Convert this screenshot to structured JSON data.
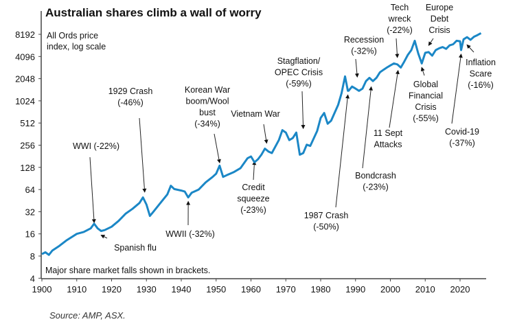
{
  "chart_data": {
    "type": "line",
    "title": "Australian shares climb a wall of worry",
    "subtitle": [
      "All Ords price",
      "index, log scale"
    ],
    "note": "Major share market falls shown in brackets.",
    "source": "Source: AMP, ASX.",
    "xlabel": "",
    "ylabel": "",
    "y_scale": "log2",
    "ylim": [
      4,
      12000
    ],
    "xlim": [
      1900,
      2027
    ],
    "y_ticks": [
      "8192",
      "4096",
      "2048",
      "1024",
      "512",
      "256",
      "128",
      "64",
      "32",
      "16",
      "8",
      "4"
    ],
    "x_ticks": [
      "1900",
      "1910",
      "1920",
      "1930",
      "1940",
      "1950",
      "1960",
      "1970",
      "1980",
      "1990",
      "2000",
      "2010",
      "2020"
    ],
    "line_color": "#1b87c6",
    "series": [
      {
        "name": "All Ords price index",
        "x": [
          1900,
          1901,
          1902,
          1903,
          1905,
          1907,
          1910,
          1912,
          1914,
          1915,
          1916,
          1917,
          1918,
          1920,
          1922,
          1924,
          1926,
          1928,
          1929,
          1930,
          1931,
          1932,
          1934,
          1936,
          1937,
          1938,
          1940,
          1941,
          1942,
          1943,
          1945,
          1947,
          1949,
          1950,
          1951,
          1952,
          1953,
          1955,
          1957,
          1959,
          1960,
          1961,
          1962,
          1963,
          1964,
          1965,
          1966,
          1968,
          1969,
          1970,
          1971,
          1972,
          1973,
          1974,
          1975,
          1976,
          1977,
          1979,
          1980,
          1981,
          1982,
          1983,
          1985,
          1986,
          1987,
          1987.8,
          1988,
          1989,
          1990,
          1991,
          1992,
          1993,
          1994,
          1995,
          1996,
          1997,
          1998,
          1999,
          2000,
          2001,
          2002,
          2003,
          2004,
          2005,
          2006,
          2007,
          2008,
          2009,
          2010,
          2011,
          2012,
          2013,
          2014,
          2015,
          2016,
          2017,
          2018,
          2019,
          2020,
          2020.3,
          2021,
          2022,
          2023,
          2024,
          2025,
          2026
        ],
        "values": [
          8.5,
          9,
          8.3,
          9.5,
          11,
          13,
          16,
          17,
          19,
          22,
          19,
          17.5,
          18,
          20,
          24,
          30,
          35,
          42,
          50,
          40,
          28,
          32,
          42,
          55,
          72,
          65,
          62,
          60,
          50,
          58,
          64,
          80,
          95,
          105,
          135,
          95,
          100,
          110,
          125,
          170,
          180,
          150,
          165,
          190,
          230,
          210,
          200,
          300,
          410,
          380,
          300,
          320,
          380,
          190,
          200,
          260,
          250,
          400,
          600,
          700,
          500,
          550,
          900,
          1300,
          2200,
          1400,
          1400,
          1600,
          1500,
          1400,
          1500,
          1900,
          2100,
          1900,
          2100,
          2500,
          2700,
          2900,
          3100,
          3300,
          3200,
          2900,
          3500,
          4300,
          5000,
          6700,
          4500,
          3300,
          4600,
          4700,
          4200,
          5000,
          5300,
          5500,
          5200,
          5800,
          6000,
          6700,
          6600,
          5000,
          7000,
          7500,
          6900,
          7600,
          8000,
          8500
        ]
      }
    ],
    "annotations": [
      {
        "lines": [
          "WWI (-22%)"
        ],
        "year": 1915,
        "value": 20
      },
      {
        "lines": [
          "1929 Crash",
          "(-46%)"
        ],
        "year": 1929.5,
        "value": 52
      },
      {
        "lines": [
          "Korean War",
          "boom/Wool",
          "bust",
          "(-34%)"
        ],
        "year": 1951,
        "value": 130
      },
      {
        "lines": [
          "Vietnam War"
        ],
        "year": 1964.5,
        "value": 240
      },
      {
        "lines": [
          "Credit",
          "squeeze",
          "(-23%)"
        ],
        "year": 1961,
        "value": 175
      },
      {
        "lines": [
          "Stagflation/",
          "OPEC Crisis",
          "(-59%)"
        ],
        "year": 1975,
        "value": 380
      },
      {
        "lines": [
          "Recession",
          "(-32%)"
        ],
        "year": 1990.5,
        "value": 1900
      },
      {
        "lines": [
          "Tech",
          "wreck",
          "(-22%)"
        ],
        "year": 2002,
        "value": 3500
      },
      {
        "lines": [
          "Europe",
          "Debt",
          "Crisis"
        ],
        "year": 2011,
        "value": 5100
      },
      {
        "lines": [
          "Global",
          "Financial",
          "Crisis",
          "(-55%)"
        ],
        "year": 2009,
        "value": 3300
      },
      {
        "lines": [
          "Inflation",
          "Scare",
          "(-16%)"
        ],
        "year": 2022,
        "value": 6700
      },
      {
        "lines": [
          "Covid-19",
          "(-37%)"
        ],
        "year": 2020.3,
        "value": 5000
      },
      {
        "lines": [
          "11 Sept",
          "Attacks"
        ],
        "year": 2002.2,
        "value": 3000
      },
      {
        "lines": [
          "Bondcrash",
          "(-23%)"
        ],
        "year": 1994.5,
        "value": 1800
      },
      {
        "lines": [
          "1987 Crash",
          "(-50%)"
        ],
        "year": 1987.8,
        "value": 1400
      },
      {
        "lines": [
          "WWII (-32%)"
        ],
        "year": 1942,
        "value": 50
      },
      {
        "lines": [
          "Spanish flu"
        ],
        "year": 1917,
        "value": 17.5
      }
    ]
  }
}
